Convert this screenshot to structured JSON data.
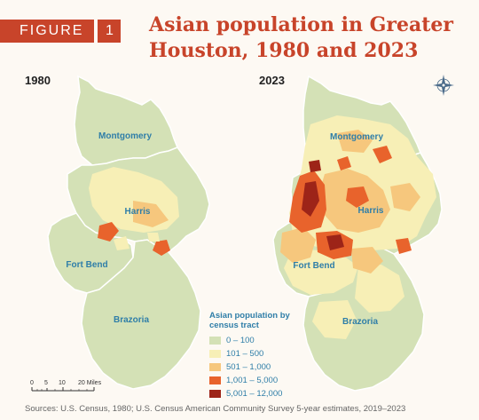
{
  "figure": {
    "label": "FIGURE",
    "number": "1"
  },
  "title": "Asian population in Greater Houston, 1980 and 2023",
  "maps": [
    {
      "year": "1980",
      "counties": [
        "Montgomery",
        "Harris",
        "Fort Bend",
        "Brazoria"
      ]
    },
    {
      "year": "2023",
      "counties": [
        "Montgomery",
        "Harris",
        "Fort Bend",
        "Brazoria"
      ]
    }
  ],
  "legend": {
    "title": "Asian population by census tract",
    "items": [
      {
        "label": "0 – 100",
        "color": "#d4e1b6"
      },
      {
        "label": "101 – 500",
        "color": "#f7efb6"
      },
      {
        "label": "501 – 1,000",
        "color": "#f6c77d"
      },
      {
        "label": "1,001 – 5,000",
        "color": "#e8632c"
      },
      {
        "label": "5,001 – 12,000",
        "color": "#9d2418"
      }
    ]
  },
  "scale": {
    "ticks": [
      "0",
      "5",
      "10",
      "20 Miles"
    ]
  },
  "source": "Sources: U.S. Census, 1980; U.S. Census American Community Survey 5-year estimates, 2019–2023",
  "icons": {
    "compass": "compass-rose-icon"
  }
}
